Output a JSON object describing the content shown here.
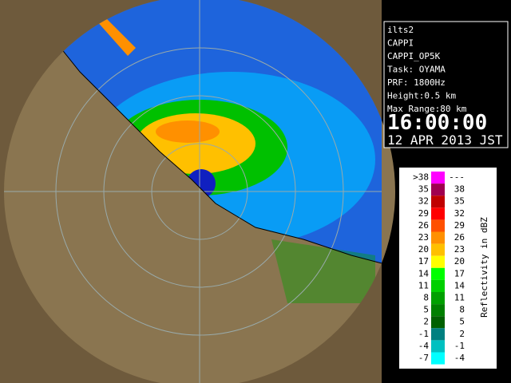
{
  "info": {
    "lines": [
      "ilts2",
      "CAPPI",
      "CAPPI_OP5K",
      "Task: OYAMA",
      "PRF: 1800Hz",
      "Height:0.5 km",
      "Max Range:80 km"
    ],
    "time": "16:00:00",
    "date": "12 APR 2013 JST"
  },
  "legend": {
    "title": "Reflectivity in dBZ",
    "rows": [
      {
        "low": ">38",
        "high": "---",
        "color": "#ff00ff"
      },
      {
        "low": "35",
        "high": "38",
        "color": "#a00050"
      },
      {
        "low": "32",
        "high": "35",
        "color": "#c00000"
      },
      {
        "low": "29",
        "high": "32",
        "color": "#ff0000"
      },
      {
        "low": "26",
        "high": "29",
        "color": "#ff5000"
      },
      {
        "low": "23",
        "high": "26",
        "color": "#ff9000"
      },
      {
        "low": "20",
        "high": "23",
        "color": "#ffc000"
      },
      {
        "low": "17",
        "high": "20",
        "color": "#ffff00"
      },
      {
        "low": "14",
        "high": "17",
        "color": "#00ff00"
      },
      {
        "low": "11",
        "high": "14",
        "color": "#00d000"
      },
      {
        "low": "8",
        "high": "11",
        "color": "#00a000"
      },
      {
        "low": "5",
        "high": "8",
        "color": "#008000"
      },
      {
        "low": "2",
        "high": "5",
        "color": "#006000"
      },
      {
        "low": "-1",
        "high": "2",
        "color": "#008080"
      },
      {
        "low": "-4",
        "high": "-1",
        "color": "#00c0c0"
      },
      {
        "low": "-7",
        "high": "-4",
        "color": "#00ffff"
      }
    ]
  }
}
